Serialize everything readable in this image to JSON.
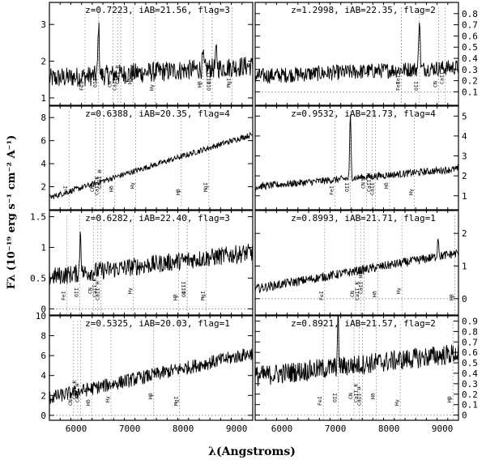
{
  "figure": {
    "ylabel": "Fλ (10⁻¹⁹ erg s⁻¹ cm⁻² A⁻¹)",
    "xlabel": "λ(Angstroms)",
    "xlim": [
      5500,
      9300
    ],
    "xticks": [
      6000,
      7000,
      8000,
      9000
    ]
  },
  "chart_data": [
    {
      "type": "line",
      "label": "z=0.7223, iAB=21.56, flag=3",
      "z": 0.7223,
      "ylim": [
        0.8,
        3.6
      ],
      "yticks": [
        1,
        2,
        3
      ],
      "side": "left",
      "lines": [
        "FeI",
        "CN",
        "CaII H",
        "CaII K",
        "OII",
        "Hδ",
        "Hγ",
        "Hβ",
        "OIII",
        "OIII",
        "MgI"
      ],
      "baseline": 1.7,
      "slope": 0.35,
      "noise": 0.28,
      "features": [
        {
          "x": 6420,
          "h": 1.4
        },
        {
          "x": 8620,
          "h": 0.5
        },
        {
          "x": 8370,
          "h": 0.35
        }
      ]
    },
    {
      "type": "line",
      "label": "z=1.2998, iAB=22.35, flag=2",
      "z": 1.2998,
      "ylim": [
        -0.02,
        0.9
      ],
      "yticks": [
        0.1,
        0.2,
        0.3,
        0.4,
        0.5,
        0.6,
        0.7,
        0.8
      ],
      "side": "right",
      "lines": [
        "FeI",
        "MgI",
        "FeI",
        "OII",
        "CN",
        "CaII K"
      ],
      "baseline": 0.28,
      "slope": 0.08,
      "noise": 0.07,
      "zero": 0.1,
      "features": [
        {
          "x": 8570,
          "h": 0.48
        }
      ]
    },
    {
      "type": "line",
      "label": "z=0.6388, iAB=20.35, flag=4",
      "z": 0.6388,
      "ylim": [
        0,
        9
      ],
      "yticks": [
        2,
        4,
        6,
        8
      ],
      "side": "left",
      "lines": [
        "FeI",
        "CN",
        "CaII H",
        "CaII K",
        "Hδ",
        "Hγ",
        "Hβ",
        "MgI"
      ],
      "baseline": 3.8,
      "slope": 5.5,
      "noise": 0.25,
      "features": []
    },
    {
      "type": "line",
      "label": "z=0.9532, iAB=21.73, flag=4",
      "z": 0.9532,
      "ylim": [
        0.3,
        5.5
      ],
      "yticks": [
        1,
        2,
        3,
        4,
        5
      ],
      "side": "right",
      "lines": [
        "FeI",
        "OII",
        "CN",
        "CaII H",
        "CaII K",
        "Hδ",
        "Hγ"
      ],
      "baseline": 1.9,
      "slope": 0.9,
      "noise": 0.18,
      "features": [
        {
          "x": 7280,
          "h": 3.1
        }
      ]
    },
    {
      "type": "line",
      "label": "z=0.6282, iAB=22.40, flag=3",
      "z": 0.6282,
      "ylim": [
        -0.1,
        1.6
      ],
      "yticks": [
        0,
        0.5,
        1,
        1.5
      ],
      "side": "left",
      "lines": [
        "FeI",
        "OII",
        "CN",
        "CaII H",
        "CaII K",
        "Hγ",
        "Hβ",
        "OIII",
        "OIII",
        "MgI"
      ],
      "baseline": 0.72,
      "slope": 0.4,
      "noise": 0.15,
      "zero": 0,
      "features": [
        {
          "x": 6080,
          "h": 0.7
        }
      ]
    },
    {
      "type": "line",
      "label": "z=0.8993, iAB=21.71, flag=1",
      "z": 0.8993,
      "ylim": [
        -0.5,
        2.7
      ],
      "yticks": [
        0,
        1,
        2
      ],
      "side": "right",
      "lines": [
        "FeI",
        "CN",
        "CaII H",
        "CaII K",
        "Hδ",
        "Hγ",
        "Hβ"
      ],
      "baseline": 0.85,
      "slope": 1.1,
      "noise": 0.14,
      "zero": 0,
      "features": [
        {
          "x": 8920,
          "h": 0.6
        }
      ]
    },
    {
      "type": "line",
      "label": "z=0.5325, iAB=20.03, flag=1",
      "z": 0.5325,
      "ylim": [
        -0.5,
        10
      ],
      "yticks": [
        0,
        2,
        4,
        6,
        8,
        10
      ],
      "side": "left",
      "lines": [
        "CN",
        "CaII H",
        "CaII K",
        "Hδ",
        "Hγ",
        "Hβ",
        "MgI"
      ],
      "baseline": 4.0,
      "slope": 4.5,
      "noise": 0.7,
      "zero": 0,
      "features": []
    },
    {
      "type": "line",
      "label": "z=0.8921, iAB=21.57, flag=2",
      "z": 0.8921,
      "ylim": [
        -0.05,
        0.95
      ],
      "yticks": [
        0,
        0.1,
        0.2,
        0.3,
        0.4,
        0.5,
        0.6,
        0.7,
        0.8,
        0.9
      ],
      "side": "right",
      "lines": [
        "FeI",
        "OII",
        "CN",
        "CaII H",
        "CaII K",
        "Hδ",
        "Hγ",
        "Hβ"
      ],
      "baseline": 0.48,
      "slope": 0.22,
      "noise": 0.1,
      "zero": 0,
      "features": [
        {
          "x": 7050,
          "h": 0.45
        }
      ]
    }
  ],
  "restframe": {
    "FeI": 3580,
    "MgI": 5175,
    "OII": 3727,
    "CN": 3883,
    "CaII H": 3968,
    "CaII K": 3934,
    "Hδ": 4102,
    "Hγ": 4340,
    "Hβ": 4861,
    "OIII": 4959
  }
}
